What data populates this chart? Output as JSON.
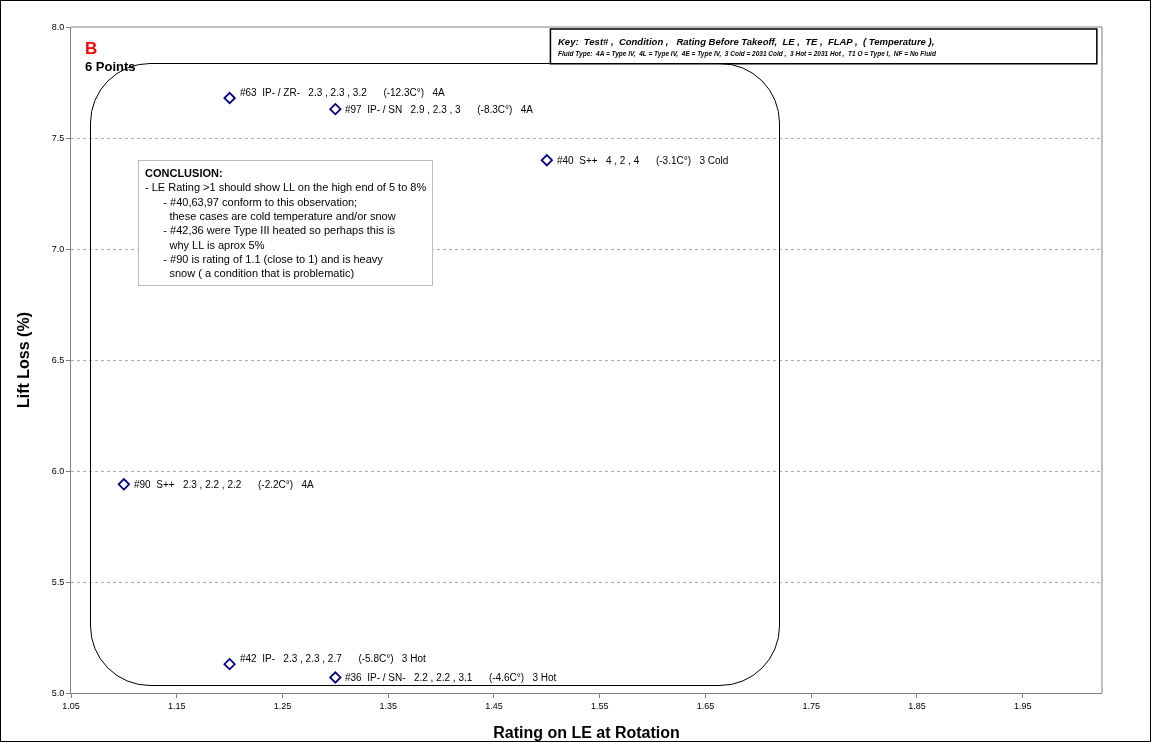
{
  "chart_data": {
    "type": "scatter",
    "xlabel": "Rating on LE at Rotation",
    "ylabel": "Lift Loss (%)",
    "x": [
      1.1,
      1.2,
      1.2,
      1.3,
      1.3,
      1.5
    ],
    "series": [
      {
        "color": "#000080",
        "values": [
          5.94,
          7.68,
          5.13,
          7.63,
          5.07,
          7.4
        ]
      }
    ],
    "marker": "diamond",
    "grid": "y",
    "xlim": [
      1.05,
      2.025
    ],
    "xticks": [
      1.05,
      1.15,
      1.25,
      1.35,
      1.45,
      1.55,
      1.65,
      1.75,
      1.85,
      1.95
    ],
    "ylim": [
      5.0,
      8.0
    ],
    "yticks": [
      {
        "value": 5.0,
        "label": "5.0"
      },
      5.5,
      {
        "value": 6.0,
        "label": "6.0"
      },
      6.5,
      {
        "value": 7.0,
        "label": "7.0"
      },
      7.5,
      {
        "value": 8.0,
        "label": "8.0"
      }
    ],
    "annotations": [
      "B",
      "6 Points",
      "Key:  Test# ,  Condition ,   Rating Before Takeoff,  LE ,  TE ,  FLAP ,  ( Temperature ),",
      "Fluid Type:  4A = Type IV,  4L = Type IV,  4E = Type IV,  3 Cold = 2031 Cold ,  3 Hot = 2031 Hot ,  T1 O = Type I,  NF = No Fluid",
      "CONCLUSION:\n- LE Rating >1 should show LL on the high end of 5 to 8%\n      - #40,63,97 conform to this observation;\n        these cases are cold temperature and/or snow\n      - #42,36 were Type III heated so perhaps this is\n        why LL is aprox 5%\n      - #90 is rating of 1.1 (close to 1) and is heavy\n        snow ( a condition that is problematic)",
      {
        "text": "#90  S++   2.3 , 2.2 , 2.2      (-2.2C°)   4A",
        "x": 1.1,
        "y": 5.94
      },
      {
        "text": "#63  IP- / ZR-   2.3 , 2.3 , 3.2      (-12.3C°)   4A",
        "x": 1.2,
        "y": 7.68
      },
      {
        "text": "#42  IP-   2.3 , 2.3 , 2.7      (-5.8C°)   3 Hot",
        "x": 1.2,
        "y": 5.13
      },
      {
        "text": "#97  IP- / SN   2.9 , 2.3 , 3      (-8.3C°)   4A",
        "x": 1.3,
        "y": 7.63
      },
      {
        "text": "#36  IP- / SN-   2.2 , 2.2 , 3.1      (-4.6C°)   3 Hot",
        "x": 1.3,
        "y": 5.07
      },
      {
        "text": "#40  S++   4 , 2 , 4      (-3.1C°)   3 Cold",
        "x": 1.5,
        "y": 7.4
      }
    ]
  }
}
